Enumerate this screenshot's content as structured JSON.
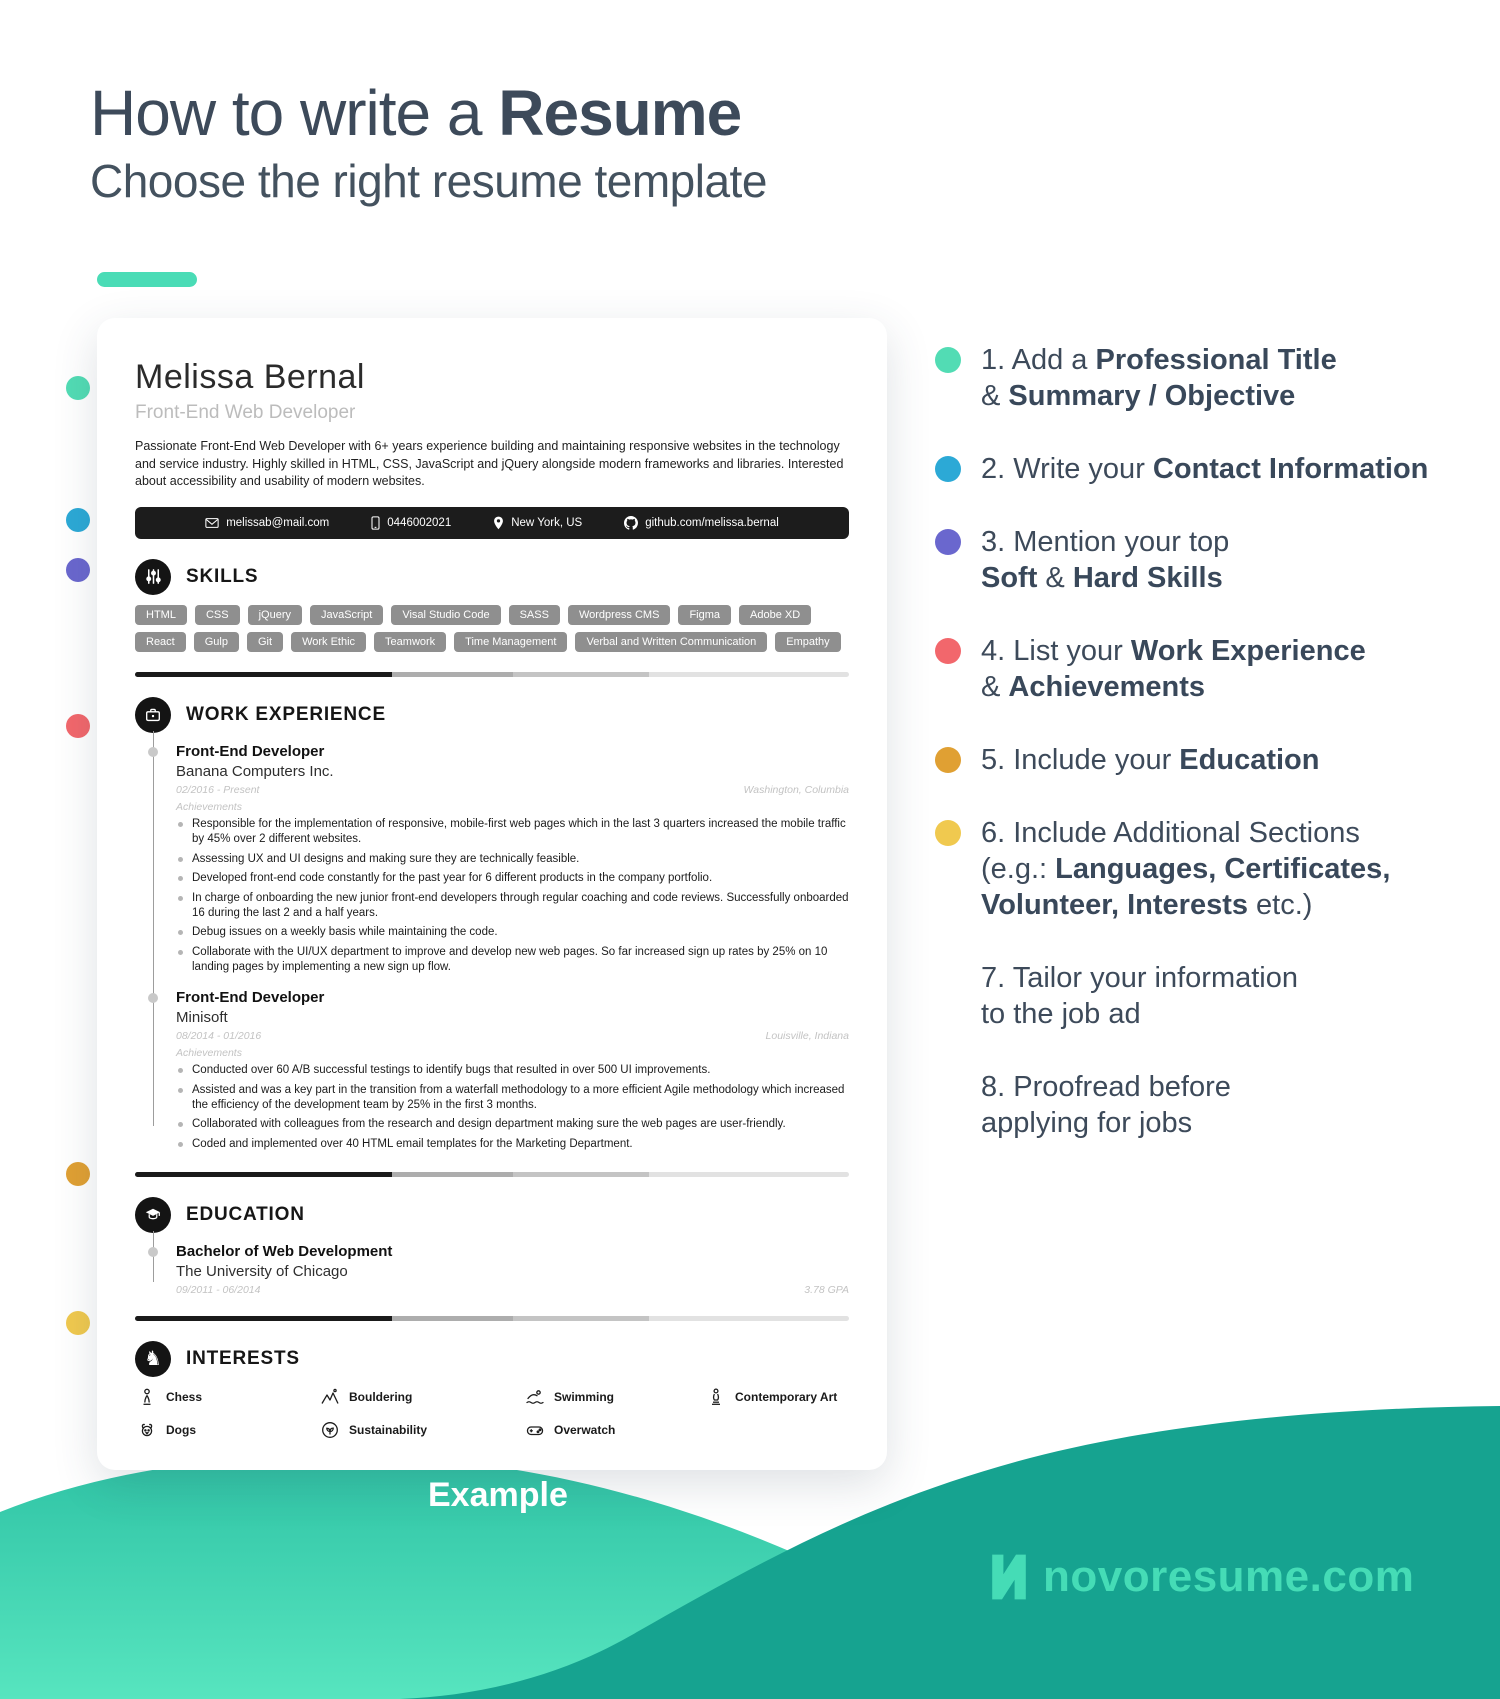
{
  "header": {
    "title_regular": "How to write a ",
    "title_bold": "Resume",
    "subtitle": "Choose the right resume template"
  },
  "resume": {
    "name": "Melissa Bernal",
    "role": "Front-End Web Developer",
    "summary": "Passionate Front-End Web Developer with 6+ years experience building and maintaining responsive websites in the technology and service industry. Highly skilled in HTML, CSS, JavaScript and jQuery alongside modern frameworks and libraries. Interested about accessibility and usability of modern websites.",
    "contact": [
      {
        "icon": "email-icon",
        "text": "melissab@mail.com"
      },
      {
        "icon": "phone-icon",
        "text": "0446002021"
      },
      {
        "icon": "location-icon",
        "text": "New York, US"
      },
      {
        "icon": "github-icon",
        "text": "github.com/melissa.bernal"
      }
    ],
    "skills": {
      "heading": "SKILLS",
      "pills": [
        "HTML",
        "CSS",
        "jQuery",
        "JavaScript",
        "Visal Studio Code",
        "SASS",
        "Wordpress CMS",
        "Figma",
        "Adobe XD",
        "React",
        "Gulp",
        "Git",
        "Work Ethic",
        "Teamwork",
        "Time Management",
        "Verbal and Written Communication",
        "Empathy"
      ]
    },
    "work": {
      "heading": "WORK EXPERIENCE",
      "jobs": [
        {
          "title": "Front-End Developer",
          "company": "Banana Computers Inc.",
          "dates": "02/2016 - Present",
          "location": "Washington, Columbia",
          "achievements_label": "Achievements",
          "bullets": [
            "Responsible for the implementation of responsive, mobile-first web pages which in the last 3 quarters increased the mobile traffic by 45% over 2 different websites.",
            "Assessing UX and UI designs and making sure they are technically feasible.",
            "Developed front-end code constantly for the past year for 6 different products in the company portfolio.",
            "In charge of onboarding the new junior front-end developers through regular coaching and code reviews. Successfully onboarded 16 during the last 2 and a half years.",
            "Debug issues on a weekly basis while maintaining the code.",
            "Collaborate with the UI/UX department to improve and develop new web pages. So far increased sign up rates by 25% on 10 landing pages by implementing a new sign up flow."
          ]
        },
        {
          "title": "Front-End Developer",
          "company": "Minisoft",
          "dates": "08/2014 - 01/2016",
          "location": "Louisville, Indiana",
          "achievements_label": "Achievements",
          "bullets": [
            "Conducted over 60 A/B successful testings to identify bugs that resulted in over 500 UI improvements.",
            "Assisted and was a key part in the transition from a waterfall methodology to a more efficient Agile methodology which increased the efficiency of the development team by 25% in the first 3 months.",
            "Collaborated with colleagues from the research and design department making sure the web pages are user-friendly.",
            "Coded and implemented over 40 HTML email templates for the Marketing Department."
          ]
        }
      ]
    },
    "education": {
      "heading": "EDUCATION",
      "degree": "Bachelor of Web Development",
      "school": "The University of Chicago",
      "dates": "09/2011 - 06/2014",
      "gpa": "3.78 GPA"
    },
    "interests": {
      "heading": "INTERESTS",
      "items": [
        {
          "icon": "chess-icon",
          "label": "Chess"
        },
        {
          "icon": "bouldering-icon",
          "label": "Bouldering"
        },
        {
          "icon": "swimming-icon",
          "label": "Swimming"
        },
        {
          "icon": "contemporary-art-icon",
          "label": "Contemporary Art"
        },
        {
          "icon": "dogs-icon",
          "label": "Dogs"
        },
        {
          "icon": "sustainability-icon",
          "label": "Sustainability"
        },
        {
          "icon": "overwatch-icon",
          "label": "Overwatch"
        }
      ]
    }
  },
  "left_dots": [
    {
      "name": "dot-professional-title",
      "color": "#52dcb4"
    },
    {
      "name": "dot-contact-info",
      "color": "#2ca9d6"
    },
    {
      "name": "dot-skills",
      "color": "#6a67ce"
    },
    {
      "name": "dot-work-experience",
      "color": "#f2676c"
    },
    {
      "name": "dot-education",
      "color": "#e0a033"
    },
    {
      "name": "dot-additional-sections",
      "color": "#f0c94f"
    }
  ],
  "steps": [
    {
      "dot": "#52dcb4",
      "lines": [
        [
          {
            "t": "1. Add a "
          },
          {
            "t": "Professional Title",
            "b": true
          }
        ],
        [
          {
            "t": "& "
          },
          {
            "t": "Summary / Objective",
            "b": true
          }
        ]
      ]
    },
    {
      "dot": "#2ca9d6",
      "lines": [
        [
          {
            "t": "2. Write your "
          },
          {
            "t": "Contact Information",
            "b": true
          }
        ]
      ]
    },
    {
      "dot": "#6a67ce",
      "lines": [
        [
          {
            "t": "3. Mention your top"
          }
        ],
        [
          {
            "t": "Soft",
            "b": true
          },
          {
            "t": " & "
          },
          {
            "t": "Hard Skills",
            "b": true
          }
        ]
      ]
    },
    {
      "dot": "#f2676c",
      "lines": [
        [
          {
            "t": "4. List your "
          },
          {
            "t": "Work Experience",
            "b": true
          }
        ],
        [
          {
            "t": "& "
          },
          {
            "t": "Achievements",
            "b": true
          }
        ]
      ]
    },
    {
      "dot": "#e0a033",
      "lines": [
        [
          {
            "t": "5. Include your "
          },
          {
            "t": "Education",
            "b": true
          }
        ]
      ]
    },
    {
      "dot": "#f0c94f",
      "lines": [
        [
          {
            "t": "6. Include Additional Sections"
          }
        ],
        [
          {
            "t": "(e.g.: "
          },
          {
            "t": "Languages, Certificates,",
            "b": true
          }
        ],
        [
          {
            "t": "Volunteer, Interests",
            "b": true
          },
          {
            "t": " etc.)"
          }
        ]
      ]
    },
    {
      "dot": null,
      "lines": [
        [
          {
            "t": "7. Tailor your information"
          }
        ],
        [
          {
            "t": "to the job ad"
          }
        ]
      ]
    },
    {
      "dot": null,
      "lines": [
        [
          {
            "t": "8. Proofread before"
          }
        ],
        [
          {
            "t": "applying for jobs"
          }
        ]
      ]
    }
  ],
  "footer": {
    "example_label": "Example",
    "brand": "novoresume.com"
  },
  "colors": {
    "accent_teal": "#4adcb6",
    "wave_light_top": "#2fc3a5",
    "wave_light_bottom": "#57e5bf",
    "wave_dark": "#16a390",
    "heading_text": "#3d4a5a"
  }
}
